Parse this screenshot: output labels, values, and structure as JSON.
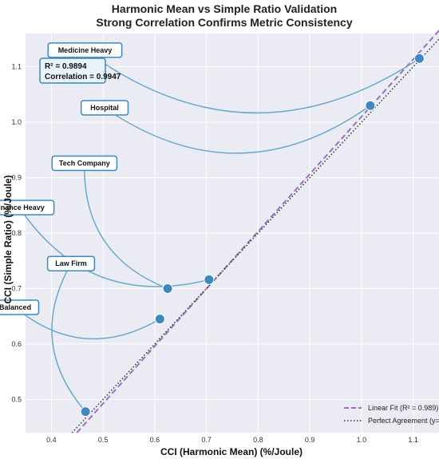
{
  "chart_data": {
    "type": "scatter",
    "title": "Harmonic Mean vs Simple Ratio Validation",
    "subtitle": "Strong Correlation Confirms Metric Consistency",
    "xlabel": "CCI (Harmonic Mean) (%/Joule)",
    "ylabel": "CCI (Simple Ratio) (%/Joule)",
    "xlim": [
      0.35,
      1.15
    ],
    "ylim": [
      0.44,
      1.16
    ],
    "xticks": [
      "0.4",
      "0.5",
      "0.6",
      "0.7",
      "0.8",
      "0.9",
      "1.0",
      "1.1"
    ],
    "yticks": [
      "0.5",
      "0.6",
      "0.7",
      "0.8",
      "0.9",
      "1.0",
      "1.1"
    ],
    "grid": true,
    "points": [
      {
        "label": "Medicine Heavy",
        "x": 1.112,
        "y": 1.115
      },
      {
        "label": "Hospital",
        "x": 1.017,
        "y": 1.03
      },
      {
        "label": "Tech Company",
        "x": 0.625,
        "y": 0.7
      },
      {
        "label": "Finance Heavy",
        "x": 0.705,
        "y": 0.716
      },
      {
        "label": "Law Firm",
        "x": 0.466,
        "y": 0.478
      },
      {
        "label": "Balanced",
        "x": 0.61,
        "y": 0.645
      }
    ],
    "annotations": [
      {
        "text": "Medicine Heavy",
        "x": 0.465,
        "y": 1.13,
        "point": 0
      },
      {
        "text": "Hospital",
        "x": 0.503,
        "y": 1.026,
        "point": 1
      },
      {
        "text": "Tech Company",
        "x": 0.464,
        "y": 0.926,
        "point": 2
      },
      {
        "text": "Finance Heavy",
        "x": 0.338,
        "y": 0.846,
        "point": 3
      },
      {
        "text": "Law Firm",
        "x": 0.438,
        "y": 0.745,
        "point": 4
      },
      {
        "text": "Balanced",
        "x": 0.33,
        "y": 0.666,
        "point": 5
      }
    ],
    "stats_box": [
      "R² = 0.9894",
      "Correlation = 0.9947"
    ],
    "fit_line": {
      "name": "Linear Fit (R² = 0.989)",
      "slope": 1.035,
      "intercept": -0.025,
      "color": "#9b6fc2"
    },
    "identity_line": {
      "name": "Perfect Agreement (y=x)",
      "color": "#333333"
    },
    "legend": "bottom-right",
    "colors": {
      "point": "#3e88be",
      "connector": "#6aa9c9",
      "box_border": "#3e88be",
      "box_fill": "#eaf3fb",
      "plot_bg": "#ebebf3"
    }
  }
}
